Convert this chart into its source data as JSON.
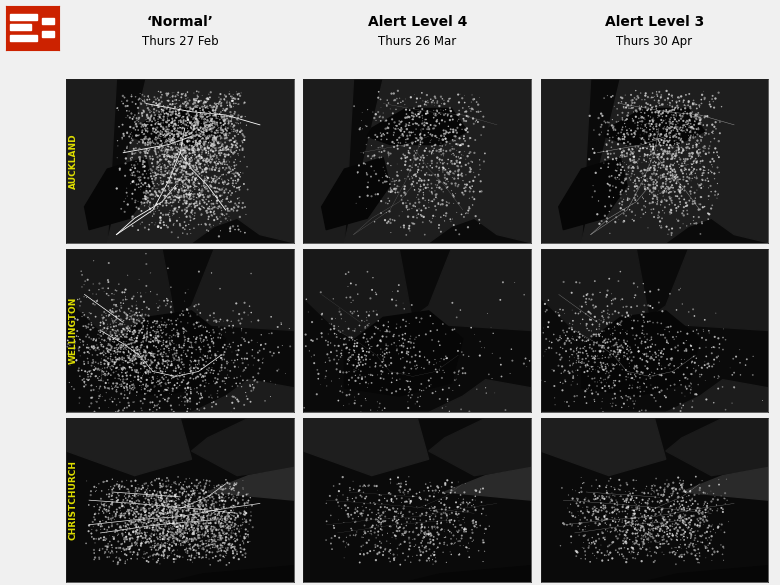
{
  "col_headers": [
    {
      "line1": "‘Normal’",
      "line2": "Thurs 27 Feb"
    },
    {
      "line1": "Alert Level 4",
      "line2": "Thurs 26 Mar"
    },
    {
      "line1": "Alert Level 3",
      "line2": "Thurs 30 Apr"
    }
  ],
  "row_labels": [
    "AUCKLAND",
    "WELLINGTON",
    "CHRISTCHURCH"
  ],
  "row_label_color": "#dddd00",
  "background_color": "#f0f0f0",
  "logo_bg_color": "#cc2200",
  "header_fontsize": 10,
  "subheader_fontsize": 8.5,
  "label_fontsize": 6.5,
  "fig_width": 7.8,
  "fig_height": 5.85
}
